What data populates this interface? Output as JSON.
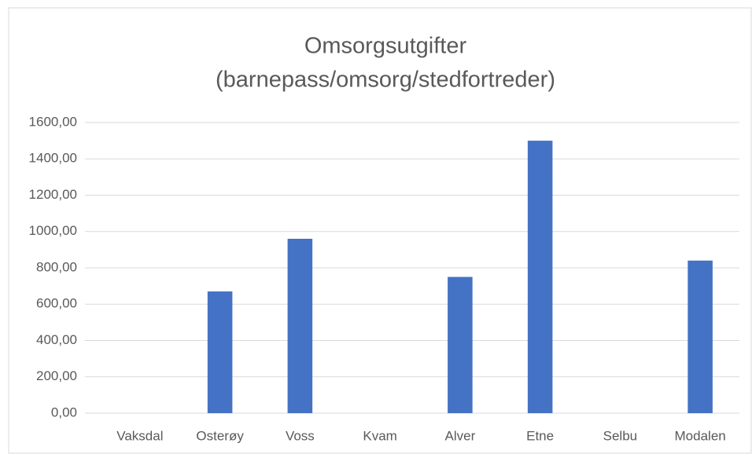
{
  "chart_data": {
    "type": "bar",
    "title": [
      "Omsorgsutgifter",
      "(barnepass/omsorg/stedfortreder)"
    ],
    "categories": [
      "Vaksdal",
      "Osterøy",
      "Voss",
      "Kvam",
      "Alver",
      "Etne",
      "Selbu",
      "Modalen"
    ],
    "values": [
      0,
      670,
      960,
      0,
      750,
      1500,
      0,
      840
    ],
    "color": "#4472c4",
    "ylim": [
      0,
      1600
    ],
    "yticks": [
      {
        "value": 0,
        "label": "0,00"
      },
      {
        "value": 200,
        "label": "200,00"
      },
      {
        "value": 400,
        "label": "400,00"
      },
      {
        "value": 600,
        "label": "600,00"
      },
      {
        "value": 800,
        "label": "800,00"
      },
      {
        "value": 1000,
        "label": "1000,00"
      },
      {
        "value": 1200,
        "label": "1200,00"
      },
      {
        "value": 1400,
        "label": "1400,00"
      },
      {
        "value": 1600,
        "label": "1600,00"
      }
    ],
    "grid": true
  }
}
